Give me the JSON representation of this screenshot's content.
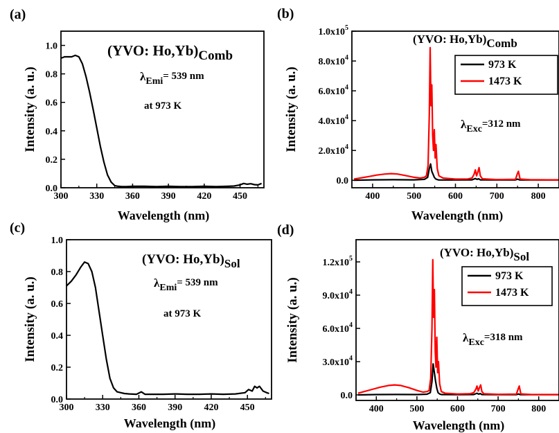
{
  "chart_data": [
    {
      "panel": "(a)",
      "type": "line",
      "title": "(YVO: Ho,Yb)",
      "title_sub": "Comb",
      "annotation_prefix": "λ",
      "annotation_sub": "Emi",
      "annotation_suffix": "= 539 nm",
      "annotation2": "at 973 K",
      "xlabel": "Wavelength (nm)",
      "ylabel": "Intensity (a. u.)",
      "xlim": [
        300,
        470
      ],
      "ylim": [
        0,
        1.1
      ],
      "xticks": [
        "300",
        "330",
        "360",
        "390",
        "420",
        "450"
      ],
      "xtick_values": [
        300,
        330,
        360,
        390,
        420,
        450
      ],
      "yticks": [
        "0.0",
        "0.2",
        "0.4",
        "0.6",
        "0.8",
        "1.0"
      ],
      "ytick_values": [
        0,
        0.2,
        0.4,
        0.6,
        0.8,
        1.0
      ],
      "series": [
        {
          "color": "#000000",
          "x": [
            300,
            303,
            306,
            309,
            312,
            315,
            318,
            321,
            324,
            327,
            330,
            333,
            336,
            339,
            342,
            345,
            348,
            351,
            355,
            360,
            370,
            380,
            390,
            400,
            410,
            420,
            430,
            440,
            445,
            450,
            453,
            456,
            459,
            462,
            465,
            468
          ],
          "y": [
            0.91,
            0.92,
            0.92,
            0.92,
            0.93,
            0.92,
            0.87,
            0.78,
            0.67,
            0.55,
            0.42,
            0.29,
            0.18,
            0.09,
            0.04,
            0.015,
            0.01,
            0.008,
            0.008,
            0.01,
            0.01,
            0.008,
            0.01,
            0.008,
            0.008,
            0.01,
            0.008,
            0.01,
            0.012,
            0.02,
            0.03,
            0.025,
            0.028,
            0.022,
            0.02,
            0.03
          ]
        }
      ]
    },
    {
      "panel": "(b)",
      "type": "line",
      "title": "(YVO: Ho,Yb)",
      "title_sub": "Comb",
      "annotation_prefix": "λ",
      "annotation_sub": "Exc",
      "annotation_suffix": "=312 nm",
      "xlabel": "Wavelength (nm)",
      "ylabel": "Intensity (a. u.)",
      "xlim": [
        350,
        850
      ],
      "ylim": [
        -5000,
        100000
      ],
      "xticks": [
        "400",
        "500",
        "600",
        "700",
        "800"
      ],
      "xtick_values": [
        400,
        500,
        600,
        700,
        800
      ],
      "yticks": [
        {
          "base": "0.0",
          "exp": ""
        },
        {
          "base": "2.0x10",
          "exp": "4"
        },
        {
          "base": "4.0x10",
          "exp": "4"
        },
        {
          "base": "6.0x10",
          "exp": "4"
        },
        {
          "base": "8.0x10",
          "exp": "4"
        },
        {
          "base": "1.0x10",
          "exp": "5"
        }
      ],
      "ytick_values": [
        0,
        20000,
        40000,
        60000,
        80000,
        100000
      ],
      "legend": {
        "position": "top-right",
        "entries": [
          "973 K",
          "1473 K"
        ]
      },
      "series": [
        {
          "name": "973 K",
          "color": "#000000",
          "x": [
            355,
            400,
            450,
            500,
            525,
            533,
            537,
            540,
            543,
            546,
            549,
            552,
            556,
            560,
            600,
            640,
            648,
            652,
            656,
            660,
            700,
            745,
            750,
            755,
            800,
            850
          ],
          "y": [
            0,
            300,
            400,
            300,
            600,
            2000,
            8000,
            11000,
            6000,
            4000,
            2000,
            1000,
            500,
            200,
            200,
            300,
            1200,
            600,
            1000,
            300,
            200,
            200,
            800,
            200,
            200,
            200
          ]
        },
        {
          "name": "1473 K",
          "color": "#ff0000",
          "x": [
            355,
            370,
            390,
            410,
            430,
            445,
            460,
            480,
            500,
            515,
            525,
            530,
            534,
            537,
            539,
            541,
            543,
            545,
            547,
            549,
            551,
            553,
            556,
            560,
            570,
            600,
            630,
            640,
            645,
            648,
            651,
            654,
            657,
            660,
            665,
            700,
            745,
            749,
            752,
            756,
            780,
            820,
            850
          ],
          "y": [
            800,
            1500,
            2500,
            3500,
            4200,
            4500,
            4200,
            3200,
            2000,
            1500,
            2000,
            3000,
            10000,
            45000,
            89000,
            50000,
            64000,
            30000,
            20000,
            34000,
            15000,
            24000,
            8000,
            3000,
            1500,
            800,
            900,
            1500,
            4000,
            7000,
            3000,
            5500,
            8500,
            3000,
            1000,
            500,
            600,
            4000,
            6000,
            800,
            400,
            300,
            300
          ]
        }
      ]
    },
    {
      "panel": "(c)",
      "type": "line",
      "title": "(YVO: Ho,Yb)",
      "title_sub": "Sol",
      "annotation_prefix": "λ",
      "annotation_sub": "Emi",
      "annotation_suffix": "= 539 nm",
      "annotation2": "at 973 K",
      "xlabel": "Wavelength (nm)",
      "ylabel": "Intensity (a. u.)",
      "xlim": [
        300,
        470
      ],
      "ylim": [
        0,
        1.0
      ],
      "xticks": [
        "300",
        "330",
        "360",
        "390",
        "420",
        "450"
      ],
      "xtick_values": [
        300,
        330,
        360,
        390,
        420,
        450
      ],
      "yticks": [
        "0.0",
        "0.2",
        "0.4",
        "0.6",
        "0.8",
        "1.0"
      ],
      "ytick_values": [
        0,
        0.2,
        0.4,
        0.6,
        0.8,
        1.0
      ],
      "series": [
        {
          "color": "#000000",
          "x": [
            300,
            304,
            308,
            312,
            315,
            318,
            321,
            324,
            327,
            330,
            333,
            336,
            339,
            342,
            345,
            348,
            352,
            358,
            362,
            365,
            370,
            380,
            390,
            400,
            410,
            420,
            430,
            440,
            448,
            451,
            454,
            456,
            458,
            460,
            463,
            466,
            468
          ],
          "y": [
            0.71,
            0.74,
            0.78,
            0.83,
            0.86,
            0.85,
            0.8,
            0.7,
            0.55,
            0.4,
            0.25,
            0.13,
            0.07,
            0.045,
            0.04,
            0.035,
            0.032,
            0.03,
            0.045,
            0.03,
            0.03,
            0.03,
            0.032,
            0.03,
            0.03,
            0.032,
            0.03,
            0.032,
            0.04,
            0.06,
            0.05,
            0.08,
            0.07,
            0.08,
            0.05,
            0.04,
            0.035
          ]
        }
      ]
    },
    {
      "panel": "(d)",
      "type": "line",
      "title": "(YVO: Ho,Yb)",
      "title_sub": "Sol",
      "annotation_prefix": "λ",
      "annotation_sub": "Exc",
      "annotation_suffix": "=318 nm",
      "xlabel": "Wavelength (nm)",
      "ylabel": "Intensity (a. u.)",
      "xlim": [
        350,
        850
      ],
      "ylim": [
        -5000,
        140000
      ],
      "xticks": [
        "400",
        "500",
        "600",
        "700",
        "800"
      ],
      "xtick_values": [
        400,
        500,
        600,
        700,
        800
      ],
      "yticks": [
        {
          "base": "0.0",
          "exp": ""
        },
        {
          "base": "3.0x10",
          "exp": "4"
        },
        {
          "base": "6.0x10",
          "exp": "4"
        },
        {
          "base": "9.0x10",
          "exp": "4"
        },
        {
          "base": "1.2x10",
          "exp": "5"
        }
      ],
      "ytick_values": [
        0,
        30000,
        60000,
        90000,
        120000
      ],
      "legend": {
        "position": "top-right",
        "entries": [
          "973 K",
          "1473 K"
        ]
      },
      "series": [
        {
          "name": "973 K",
          "color": "#000000",
          "x": [
            355,
            400,
            450,
            500,
            525,
            533,
            537,
            540,
            543,
            546,
            549,
            552,
            556,
            560,
            600,
            640,
            648,
            652,
            656,
            660,
            700,
            745,
            750,
            755,
            800,
            850
          ],
          "y": [
            0,
            300,
            400,
            300,
            600,
            2000,
            12000,
            28000,
            20000,
            12000,
            6000,
            2000,
            800,
            300,
            200,
            300,
            1500,
            700,
            1200,
            300,
            200,
            200,
            800,
            200,
            200,
            200
          ]
        },
        {
          "name": "1473 K",
          "color": "#ff0000",
          "x": [
            355,
            370,
            390,
            410,
            430,
            445,
            460,
            480,
            500,
            515,
            525,
            530,
            534,
            537,
            539,
            541,
            543,
            545,
            547,
            549,
            551,
            553,
            556,
            560,
            570,
            600,
            630,
            640,
            645,
            648,
            651,
            654,
            657,
            660,
            665,
            700,
            745,
            749,
            752,
            756,
            780,
            820,
            850
          ],
          "y": [
            1500,
            3000,
            5000,
            7000,
            8500,
            9000,
            8500,
            6500,
            4000,
            2500,
            3000,
            4000,
            15000,
            60000,
            122000,
            70000,
            95000,
            40000,
            25000,
            52000,
            20000,
            30000,
            10000,
            3000,
            1500,
            800,
            1000,
            2000,
            5000,
            8000,
            3500,
            6500,
            9000,
            3000,
            1000,
            500,
            700,
            5000,
            8000,
            900,
            400,
            300,
            300
          ]
        }
      ]
    }
  ]
}
